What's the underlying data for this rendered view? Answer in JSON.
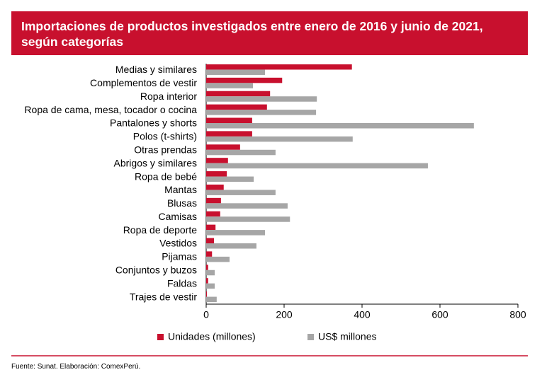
{
  "chart_data": {
    "type": "hbar",
    "title": "Importaciones de productos investigados entre enero de 2016 y junio de 2021, según categorías",
    "source": "Fuente: Sunat. Elaboración: ComexPerú.",
    "categories": [
      "Medias y similares",
      "Complementos de vestir",
      "Ropa interior",
      "Ropa de cama, mesa, tocador o cocina",
      "Pantalones y shorts",
      "Polos (t-shirts)",
      "Otras prendas",
      "Abrigos y similares",
      "Ropa de bebé",
      "Mantas",
      "Blusas",
      "Camisas",
      "Ropa de deporte",
      "Vestidos",
      "Pijamas",
      "Conjuntos y buzos",
      "Faldas",
      "Trajes de vestir"
    ],
    "series": [
      {
        "name": "Unidades (millones)",
        "color": "#c8102e",
        "values": [
          374,
          195,
          164,
          156,
          118,
          118,
          87,
          56,
          53,
          45,
          38,
          36,
          24,
          20,
          15,
          5,
          5,
          2
        ]
      },
      {
        "name": "US$ millones",
        "color": "#a6a6a6",
        "values": [
          151,
          120,
          284,
          282,
          687,
          376,
          178,
          569,
          122,
          178,
          209,
          215,
          151,
          129,
          60,
          22,
          22,
          27
        ]
      }
    ],
    "xlim": [
      0,
      800
    ],
    "xticks": [
      0,
      200,
      400,
      600,
      800
    ],
    "grid": false,
    "legend": "bottom"
  }
}
